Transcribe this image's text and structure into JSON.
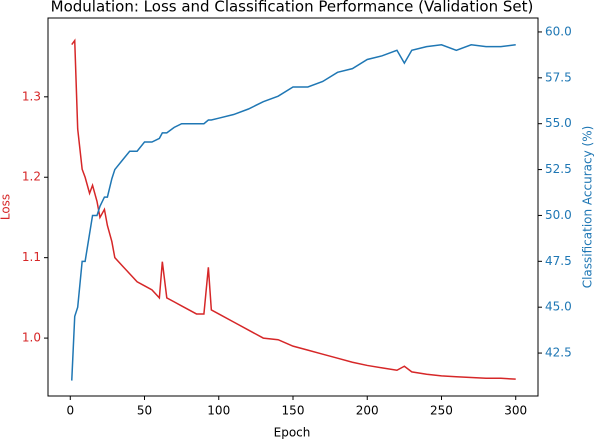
{
  "chart_data": {
    "type": "line",
    "title": "Modulation: Loss and Classification Performance (Validation Set)",
    "x_label": "Epoch",
    "y_label": "Loss",
    "y2_label": "Classification Accuracy (%)",
    "x": [
      1,
      3,
      5,
      8,
      10,
      13,
      15,
      18,
      20,
      23,
      25,
      28,
      30,
      35,
      40,
      45,
      50,
      55,
      60,
      62,
      65,
      70,
      75,
      80,
      85,
      90,
      93,
      95,
      100,
      110,
      120,
      130,
      140,
      150,
      160,
      170,
      180,
      190,
      200,
      210,
      220,
      225,
      230,
      240,
      250,
      260,
      270,
      280,
      290,
      300
    ],
    "series": [
      {
        "name": "Loss",
        "color": "#d62728",
        "axis": "y",
        "values": [
          1.365,
          1.37,
          1.26,
          1.21,
          1.2,
          1.18,
          1.19,
          1.17,
          1.15,
          1.16,
          1.14,
          1.12,
          1.1,
          1.09,
          1.08,
          1.07,
          1.065,
          1.06,
          1.05,
          1.095,
          1.05,
          1.045,
          1.04,
          1.035,
          1.03,
          1.03,
          1.088,
          1.035,
          1.03,
          1.02,
          1.01,
          1.0,
          0.998,
          0.99,
          0.985,
          0.98,
          0.975,
          0.97,
          0.966,
          0.963,
          0.96,
          0.965,
          0.958,
          0.955,
          0.953,
          0.952,
          0.951,
          0.95,
          0.95,
          0.949
        ]
      },
      {
        "name": "Classification Accuracy",
        "color": "#1f77b4",
        "axis": "y2",
        "values": [
          41,
          44.5,
          45,
          47.5,
          47.5,
          49,
          50,
          50,
          50.5,
          51,
          51,
          52,
          52.5,
          53,
          53.5,
          53.5,
          54,
          54,
          54.2,
          54.5,
          54.5,
          54.8,
          55,
          55,
          55,
          55,
          55.2,
          55.2,
          55.3,
          55.5,
          55.8,
          56.2,
          56.5,
          57,
          57,
          57.3,
          57.8,
          58,
          58.5,
          58.7,
          59,
          58.3,
          59,
          59.2,
          59.3,
          59,
          59.3,
          59.2,
          59.2,
          59.3
        ]
      }
    ],
    "xlim": [
      -15,
      315
    ],
    "xticks": [
      0,
      50,
      100,
      150,
      200,
      250,
      300
    ],
    "ylim": [
      0.928,
      1.398
    ],
    "yticks": [
      {
        "value": 1,
        "label": "1.0"
      },
      1.1,
      1.2,
      1.3
    ],
    "y2lim": [
      40.16,
      60.76
    ],
    "y2ticks": [
      42.5,
      {
        "value": 45,
        "label": "45.0"
      },
      47.5,
      {
        "value": 50,
        "label": "50.0"
      },
      52.5,
      {
        "value": 55,
        "label": "55.0"
      },
      57.5,
      {
        "value": 60,
        "label": "60.0"
      }
    ]
  }
}
